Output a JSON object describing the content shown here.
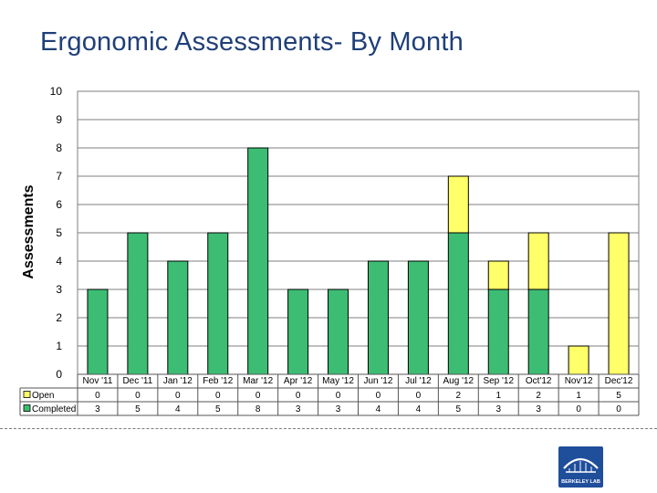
{
  "title": "Ergonomic Assessments- By Month",
  "colors": {
    "completed": "#3cbd73",
    "open": "#ffff6a",
    "grid": "#7f7f7f",
    "title": "#1f3f78",
    "logo": "#1f4e9a"
  },
  "logo_text": "BERKELEY LAB",
  "chart_data": {
    "type": "bar",
    "stacked": true,
    "title": "Ergonomic Assessments- By Month",
    "xlabel": "",
    "ylabel": "Assessments",
    "ylim": [
      0,
      10
    ],
    "y_ticks": [
      0,
      1,
      2,
      3,
      4,
      5,
      6,
      7,
      8,
      9,
      10
    ],
    "grid": true,
    "legend": "data-table-left",
    "categories": [
      "Nov '11",
      "Dec '11",
      "Jan '12",
      "Feb '12",
      "Mar '12",
      "Apr '12",
      "May '12",
      "Jun '12",
      "Jul '12",
      "Aug '12",
      "Sep '12",
      "Oct'12",
      "Nov'12",
      "Dec'12"
    ],
    "series": [
      {
        "name": "Open",
        "values": [
          0,
          0,
          0,
          0,
          0,
          0,
          0,
          0,
          0,
          2,
          1,
          2,
          1,
          5
        ]
      },
      {
        "name": "Completed",
        "values": [
          3,
          5,
          4,
          5,
          8,
          3,
          3,
          4,
          4,
          5,
          3,
          3,
          0,
          0
        ]
      }
    ]
  }
}
